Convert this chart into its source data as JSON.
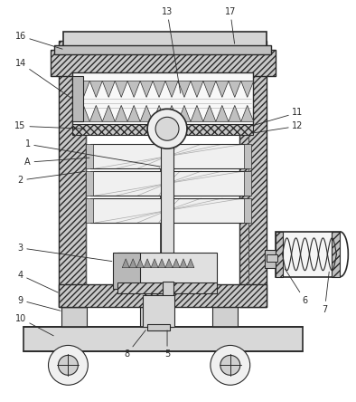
{
  "bg_color": "#ffffff",
  "lc": "#2a2a2a",
  "figsize": [
    3.94,
    4.44
  ],
  "dpi": 100,
  "font_size": 7.0
}
